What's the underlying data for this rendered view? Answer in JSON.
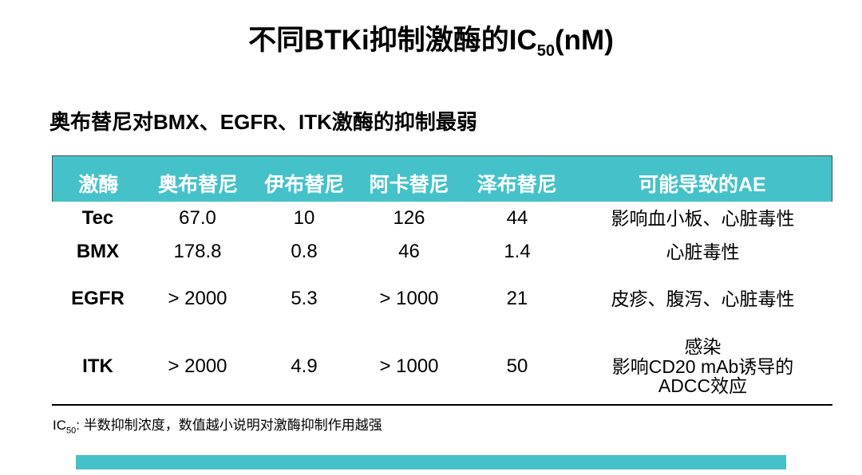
{
  "slide": {
    "title": {
      "prefix": "不同BTKi抑制激酶的IC",
      "subscript": "50",
      "suffix": "(nM)"
    },
    "subtitle": "奥布替尼对BMX、EGFR、ITK激酶的抑制最弱",
    "footnote": {
      "prefix": "IC",
      "subscript": "50",
      "text": ": 半数抑制浓度，数值越小说明对激酶抑制作用越强"
    }
  },
  "colors": {
    "accent_teal": "#45C2C9",
    "header_text": "#FFFFFF",
    "body_text": "#000000"
  },
  "chart_data": {
    "type": "table",
    "title": "不同BTKi抑制激酶的IC50(nM)",
    "columns": [
      "激酶",
      "奥布替尼",
      "伊布替尼",
      "阿卡替尼",
      "泽布替尼",
      "可能导致的AE"
    ],
    "rows": [
      {
        "kinase": "Tec",
        "values": [
          "67.0",
          "10",
          "126",
          "44"
        ],
        "ae": [
          "影响血小板、心脏毒性"
        ]
      },
      {
        "kinase": "BMX",
        "values": [
          "178.8",
          "0.8",
          "46",
          "1.4"
        ],
        "ae": [
          "心脏毒性"
        ]
      },
      {
        "kinase": "EGFR",
        "values": [
          "> 2000",
          "5.3",
          "> 1000",
          "21"
        ],
        "ae": [
          "皮疹、腹泻、心脏毒性"
        ]
      },
      {
        "kinase": "ITK",
        "values": [
          "> 2000",
          "4.9",
          "> 1000",
          "50"
        ],
        "ae": [
          "感染",
          "影响CD20 mAb诱导的",
          "ADCC效应"
        ]
      }
    ]
  }
}
